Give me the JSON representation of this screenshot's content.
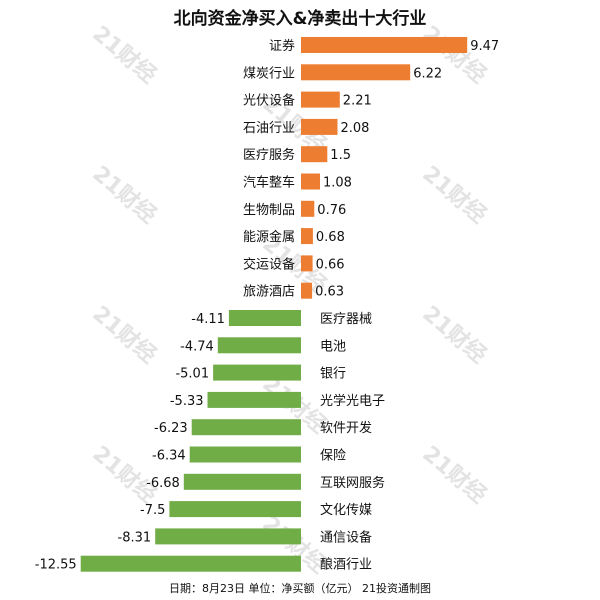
{
  "chart_data": {
    "type": "bar",
    "orientation": "horizontal",
    "title": "北向资金净买入&净卖出十大行业",
    "categories": [
      "证券",
      "煤炭行业",
      "光伏设备",
      "石油行业",
      "医疗服务",
      "汽车整车",
      "生物制品",
      "能源金属",
      "交运设备",
      "旅游酒店",
      "医疗器械",
      "电池",
      "银行",
      "光学光电子",
      "软件开发",
      "保险",
      "互联网服务",
      "文化传媒",
      "通信设备",
      "酿酒行业"
    ],
    "values": [
      9.47,
      6.22,
      2.21,
      2.08,
      1.5,
      1.08,
      0.76,
      0.68,
      0.66,
      0.63,
      -4.11,
      -4.74,
      -5.01,
      -5.33,
      -6.23,
      -6.34,
      -6.68,
      -7.5,
      -8.31,
      -12.55
    ],
    "value_labels": [
      "9.47",
      "6.22",
      "2.21",
      "2.08",
      "1.5",
      "1.08",
      "0.76",
      "0.68",
      "0.66",
      "0.63",
      "-4.11",
      "-4.74",
      "-5.01",
      "-5.33",
      "-6.23",
      "-6.34",
      "-6.68",
      "-7.5",
      "-8.31",
      "-12.55"
    ],
    "colors": {
      "positive": "#ED7D31",
      "negative": "#70AD47"
    },
    "grid": false,
    "legend": "none",
    "footnote": "日期：8月23日 单位：净买额（亿元） 21投资通制图",
    "watermark": "21财经"
  }
}
